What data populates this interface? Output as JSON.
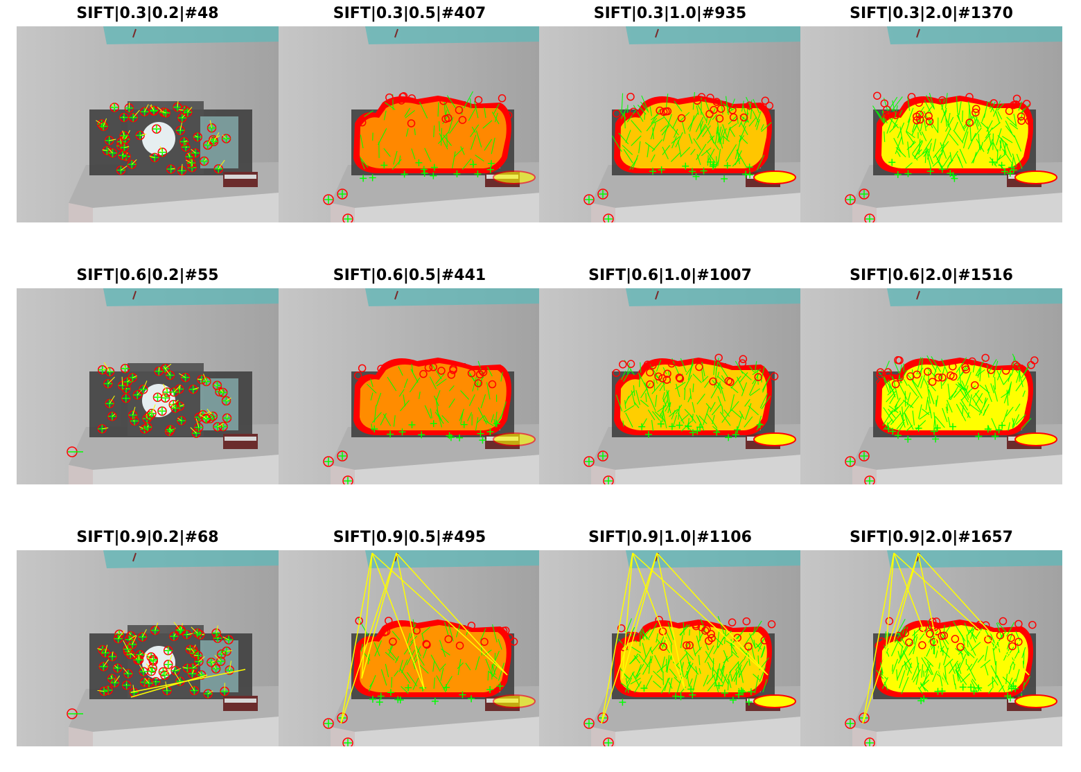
{
  "figure": {
    "panels": [
      {
        "title": "SIFT|0.3|0.2|#48",
        "row": 0,
        "col": 0,
        "matches": 48
      },
      {
        "title": "SIFT|0.3|0.5|#407",
        "row": 0,
        "col": 1,
        "matches": 407
      },
      {
        "title": "SIFT|0.3|1.0|#935",
        "row": 0,
        "col": 2,
        "matches": 935
      },
      {
        "title": "SIFT|0.3|2.0|#1370",
        "row": 0,
        "col": 3,
        "matches": 1370
      },
      {
        "title": "SIFT|0.6|0.2|#55",
        "row": 1,
        "col": 0,
        "matches": 55
      },
      {
        "title": "SIFT|0.6|0.5|#441",
        "row": 1,
        "col": 1,
        "matches": 441
      },
      {
        "title": "SIFT|0.6|1.0|#1007",
        "row": 1,
        "col": 2,
        "matches": 1007
      },
      {
        "title": "SIFT|0.6|2.0|#1516",
        "row": 1,
        "col": 3,
        "matches": 1516
      },
      {
        "title": "SIFT|0.9|0.2|#68",
        "row": 2,
        "col": 0,
        "matches": 68
      },
      {
        "title": "SIFT|0.9|0.5|#495",
        "row": 2,
        "col": 1,
        "matches": 495
      },
      {
        "title": "SIFT|0.9|1.0|#1106",
        "row": 2,
        "col": 2,
        "matches": 1106
      },
      {
        "title": "SIFT|0.9|2.0|#1657",
        "row": 2,
        "col": 3,
        "matches": 1657
      }
    ]
  },
  "colors": {
    "keypoint_circle": "#ff0000",
    "keypoint_cross": "#00ff00",
    "match_line": "#ffff00",
    "wall": "#b9b9b9",
    "shelf": "#a5a5a5",
    "floor": "#d4d4d4",
    "shelf_front": "#8e8e8e",
    "cyan_tint": "#5fb8b8"
  }
}
